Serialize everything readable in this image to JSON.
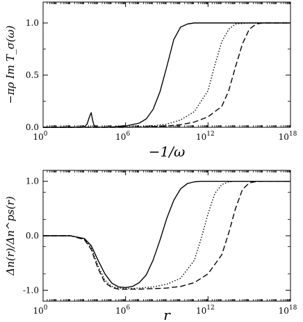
{
  "chart_data": [
    {
      "type": "line",
      "xscale": "log",
      "xlim": [
        1,
        1e+18
      ],
      "ylim": [
        0,
        1.2
      ],
      "xlabel": "−1/ω",
      "ylabel": "−πρ Im T_σ(ω)",
      "x_ticks": [
        {
          "value": 1,
          "base": "10",
          "exp": "0"
        },
        {
          "value": 1000000.0,
          "base": "10",
          "exp": "6"
        },
        {
          "value": 1000000000000.0,
          "base": "10",
          "exp": "12"
        },
        {
          "value": 1e+18,
          "base": "10",
          "exp": "18"
        }
      ],
      "y_ticks": [
        {
          "value": 0.0,
          "label": "0.0"
        },
        {
          "value": 0.5,
          "label": "0.5"
        },
        {
          "value": 1.0,
          "label": "1.0"
        }
      ],
      "grid": false,
      "legend": "none",
      "series": [
        {
          "style": "solid",
          "x": [
            1,
            10,
            100,
            1000,
            1585,
            2512,
            3162,
            3981,
            5012,
            6310,
            10000,
            100000,
            1000000.0,
            10000000.0,
            32000000.0,
            100000000.0,
            320000000.0,
            1000000000.0,
            3200000000.0,
            10000000000.0,
            32000000000.0,
            100000000000.0,
            320000000000.0,
            1000000000000.0,
            10000000000000.0,
            1e+18
          ],
          "y": [
            0,
            0,
            0,
            0.003,
            0.03,
            0.11,
            0.14,
            0.07,
            0.02,
            0.006,
            0.001,
            0.003,
            0.012,
            0.04,
            0.08,
            0.17,
            0.34,
            0.58,
            0.84,
            0.96,
            0.99,
            1.0,
            1.0,
            1.0,
            1.0,
            1.0
          ]
        },
        {
          "style": "dotted",
          "x": [
            1,
            100000,
            1000000.0,
            10000000.0,
            100000000.0,
            1000000000.0,
            10000000000.0,
            100000000000.0,
            1000000000000.0,
            3200000000000.0,
            10000000000000.0,
            32000000000000.0,
            100000000000000.0,
            1000000000000000.0,
            1e+18
          ],
          "y": [
            0,
            0,
            0.002,
            0.006,
            0.014,
            0.03,
            0.07,
            0.15,
            0.35,
            0.6,
            0.82,
            0.94,
            0.99,
            1.0,
            1.0
          ]
        },
        {
          "style": "dashed",
          "x": [
            1,
            1000000.0,
            10000000.0,
            100000000.0,
            1000000000.0,
            10000000000.0,
            100000000000.0,
            1000000000000.0,
            10000000000000.0,
            32000000000000.0,
            100000000000000.0,
            320000000000000.0,
            1000000000000000.0,
            3200000000000000.0,
            1e+16,
            1e+18
          ],
          "y": [
            0,
            0,
            0.002,
            0.006,
            0.012,
            0.025,
            0.05,
            0.1,
            0.2,
            0.35,
            0.58,
            0.8,
            0.94,
            0.99,
            1.0,
            1.0
          ]
        }
      ]
    },
    {
      "type": "line",
      "xscale": "log",
      "xlim": [
        1,
        1e+18
      ],
      "ylim": [
        -1.2,
        1.2
      ],
      "xlabel": "r",
      "ylabel": "Δn(r)/Δn^ps(r)",
      "x_ticks": [
        {
          "value": 1,
          "base": "10",
          "exp": "0"
        },
        {
          "value": 1000000.0,
          "base": "10",
          "exp": "6"
        },
        {
          "value": 1000000000000.0,
          "base": "10",
          "exp": "12"
        },
        {
          "value": 1e+18,
          "base": "10",
          "exp": "18"
        }
      ],
      "y_ticks": [
        {
          "value": -1.0,
          "label": "-1.0"
        },
        {
          "value": 0.0,
          "label": "0.0"
        },
        {
          "value": 1.0,
          "label": "1.0"
        }
      ],
      "grid": false,
      "legend": "none",
      "series": [
        {
          "style": "solid",
          "x": [
            1,
            100,
            1000,
            3162,
            10000,
            31623,
            100000,
            316228,
            1000000.0,
            3200000.0,
            10000000.0,
            32000000.0,
            100000000.0,
            320000000.0,
            1000000000.0,
            3200000000.0,
            10000000000.0,
            32000000000.0,
            100000000000.0,
            320000000000.0,
            1000000000000.0,
            1e+18
          ],
          "y": [
            0,
            0,
            -0.05,
            -0.18,
            -0.45,
            -0.7,
            -0.87,
            -0.94,
            -0.95,
            -0.93,
            -0.86,
            -0.72,
            -0.45,
            -0.08,
            0.32,
            0.65,
            0.86,
            0.96,
            0.99,
            1.0,
            1.0,
            1.0
          ]
        },
        {
          "style": "dotted",
          "x": [
            1,
            100,
            1000,
            3162,
            10000,
            31623,
            100000,
            316228,
            1000000.0,
            10000000.0,
            100000000.0,
            1000000000.0,
            10000000000.0,
            100000000000.0,
            320000000000.0,
            1000000000000.0,
            3200000000000.0,
            10000000000000.0,
            32000000000000.0,
            100000000000000.0,
            1000000000000000.0,
            1e+18
          ],
          "y": [
            0,
            0,
            -0.06,
            -0.22,
            -0.55,
            -0.82,
            -0.93,
            -0.96,
            -0.97,
            -0.96,
            -0.94,
            -0.89,
            -0.78,
            -0.45,
            -0.05,
            0.4,
            0.78,
            0.94,
            0.99,
            1.0,
            1.0,
            1.0
          ]
        },
        {
          "style": "dashed",
          "x": [
            1,
            100,
            1000,
            3162,
            10000,
            31623,
            100000,
            316228,
            1000000.0,
            10000000.0,
            100000000.0,
            1000000000.0,
            10000000000.0,
            100000000000.0,
            1000000000000.0,
            10000000000000.0,
            32000000000000.0,
            100000000000000.0,
            320000000000000.0,
            1000000000000000.0,
            3200000000000000.0,
            1e+16,
            1e+18
          ],
          "y": [
            0,
            0,
            -0.07,
            -0.25,
            -0.6,
            -0.86,
            -0.95,
            -0.98,
            -0.98,
            -0.98,
            -0.97,
            -0.96,
            -0.93,
            -0.86,
            -0.7,
            -0.35,
            0.05,
            0.5,
            0.85,
            0.97,
            0.995,
            1.0,
            1.0
          ]
        }
      ]
    }
  ]
}
